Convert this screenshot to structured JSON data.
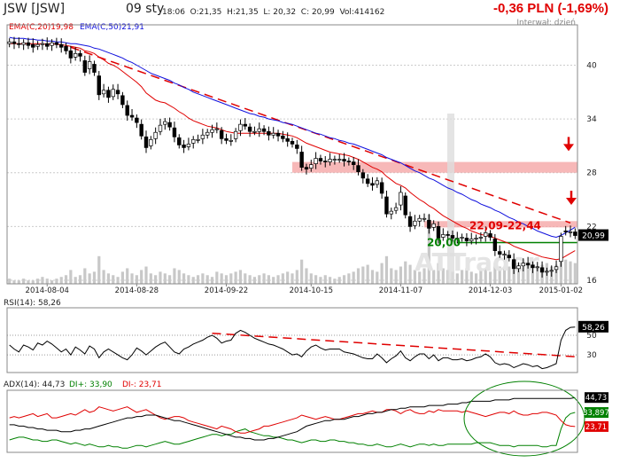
{
  "header": {
    "ticker": "JSW [JSW]",
    "date": "09 sty",
    "ohlc": "18:06  O:21,35  H:21,35  L: 20,32  C: 20,99  Vol:414162",
    "change": "-0,36 PLN (-1,69%)",
    "interval": "Interwał: dzień"
  },
  "colors": {
    "up": "#ffffff",
    "down": "#000000",
    "ema20": "#e00000",
    "ema50": "#1010dd",
    "trend": "#e00000",
    "zone": "#f4a0a0",
    "support": "#008000",
    "volume": "#c8c8c8",
    "grid": "#cccccc",
    "adx": "#000000",
    "di_plus": "#008000",
    "di_minus": "#e00000"
  },
  "chart_data": [
    {
      "type": "candlestick",
      "name": "price",
      "legend": [
        "EMA(C,20)19,98",
        "EMA(C,50)21,91"
      ],
      "y_ticks": [
        16,
        22,
        28,
        34,
        40
      ],
      "ylim": [
        15.6,
        44.5
      ],
      "x_tick_labels": [
        "2014-08-04",
        "2014-08-28",
        "2014-09-22",
        "2014-10-15",
        "2014-11-07",
        "2014-12-03",
        "2015-01-02"
      ],
      "last_label": "20,99",
      "annotations": {
        "zone_label": "22,09-22,44",
        "support_label": "20,00",
        "watermark": "ATTrader"
      },
      "close": [
        42.6,
        42.4,
        42.3,
        42.5,
        42.2,
        42.0,
        42.3,
        42.4,
        42.1,
        42.5,
        42.3,
        42.0,
        41.6,
        40.8,
        41.3,
        41.0,
        39.2,
        40.4,
        39.2,
        36.7,
        37.2,
        36.4,
        37.3,
        36.8,
        35.6,
        34.4,
        34.2,
        33.6,
        32.1,
        30.8,
        31.7,
        32.5,
        33.3,
        33.7,
        33.1,
        32.0,
        31.1,
        30.8,
        31.2,
        31.7,
        31.7,
        32.2,
        32.5,
        32.8,
        32.9,
        31.8,
        31.6,
        31.6,
        32.6,
        33.4,
        33.2,
        32.6,
        32.6,
        32.9,
        32.6,
        32.2,
        32.4,
        32.1,
        31.8,
        31.5,
        31.2,
        30.7,
        28.6,
        28.4,
        28.9,
        29.6,
        29.3,
        29.2,
        29.5,
        29.5,
        29.5,
        29.3,
        29.2,
        28.9,
        28.1,
        27.4,
        26.8,
        26.6,
        27.1,
        25.7,
        23.4,
        23.7,
        24.1,
        25.8,
        23.3,
        22.0,
        22.6,
        22.9,
        22.9,
        21.8,
        22.3,
        20.7,
        21.1,
        21.0,
        20.7,
        20.7,
        20.8,
        20.4,
        20.6,
        20.7,
        20.8,
        21.3,
        20.8,
        19.3,
        18.9,
        18.9,
        18.5,
        17.3,
        17.6,
        17.9,
        17.7,
        17.4,
        17.5,
        16.9,
        17.0,
        17.1,
        17.5,
        20.9,
        21.4,
        21.4,
        20.99
      ],
      "open_delta": [
        -0.2,
        0.2,
        0.1,
        -0.2,
        0.3,
        0.3,
        -0.2,
        -0.1,
        0.3,
        -0.3,
        0.2,
        0.3,
        0.5,
        0.8,
        -0.4,
        0.3,
        1.3,
        -0.8,
        0.9,
        2.1,
        -0.4,
        0.8,
        -0.8,
        0.4,
        1.0,
        1.1,
        0.2,
        0.5,
        1.3,
        1.2,
        -0.7,
        -0.7,
        -0.7,
        -0.3,
        0.5,
        1.0,
        0.8,
        0.3,
        -0.3,
        -0.4,
        0.0,
        -0.4,
        -0.3,
        -0.3,
        -0.1,
        0.9,
        0.2,
        0.0,
        -0.8,
        -0.7,
        0.2,
        0.5,
        0.0,
        -0.3,
        0.3,
        0.4,
        -0.2,
        0.3,
        0.3,
        0.3,
        0.3,
        0.4,
        1.7,
        0.2,
        -0.4,
        -0.6,
        0.3,
        0.1,
        -0.3,
        0.0,
        0.0,
        0.2,
        0.1,
        0.3,
        0.7,
        0.6,
        0.5,
        0.2,
        -0.4,
        1.2,
        1.9,
        -0.3,
        -0.3,
        -1.4,
        2.1,
        1.1,
        -0.5,
        -0.3,
        0.0,
        0.9,
        -0.4,
        1.3,
        -0.3,
        0.1,
        0.3,
        0.0,
        -0.1,
        0.3,
        -0.2,
        -0.1,
        -0.1,
        -0.4,
        0.4,
        1.3,
        0.3,
        0.0,
        0.3,
        1.0,
        -0.3,
        -0.3,
        0.2,
        0.3,
        -0.1,
        0.5,
        -0.1,
        -0.1,
        -0.3,
        -2.8,
        0.1,
        0.0,
        0.4
      ],
      "volume": [
        3,
        2,
        2,
        3,
        2,
        2,
        3,
        4,
        3,
        2,
        3,
        4,
        5,
        8,
        4,
        5,
        9,
        6,
        7,
        16,
        8,
        6,
        5,
        4,
        7,
        9,
        6,
        5,
        8,
        10,
        6,
        5,
        7,
        6,
        5,
        9,
        8,
        6,
        5,
        4,
        5,
        6,
        5,
        4,
        7,
        6,
        5,
        6,
        7,
        8,
        6,
        5,
        4,
        5,
        6,
        5,
        4,
        5,
        6,
        7,
        6,
        8,
        14,
        9,
        6,
        5,
        4,
        5,
        4,
        3,
        4,
        5,
        6,
        7,
        9,
        10,
        11,
        8,
        7,
        12,
        16,
        9,
        8,
        10,
        13,
        11,
        8,
        7,
        9,
        40,
        8,
        12,
        9,
        8,
        7,
        6,
        8,
        9,
        7,
        6,
        8,
        9,
        7,
        12,
        10,
        9,
        10,
        14,
        11,
        9,
        12,
        13,
        10,
        11,
        12,
        10,
        11,
        25,
        14,
        13,
        12
      ],
      "ema20": [
        42.4,
        42.4,
        42.4,
        42.4,
        42.4,
        42.4,
        42.4,
        42.4,
        42.3,
        42.4,
        42.3,
        42.3,
        42.2,
        42.1,
        42.0,
        41.9,
        41.6,
        41.5,
        41.3,
        40.9,
        40.6,
        40.2,
        40.0,
        39.7,
        39.3,
        38.9,
        38.5,
        38.1,
        37.6,
        36.9,
        36.5,
        36.1,
        35.9,
        35.8,
        35.5,
        35.2,
        34.8,
        34.5,
        34.1,
        33.8,
        33.6,
        33.4,
        33.2,
        33.1,
        33.0,
        32.8,
        32.6,
        32.5,
        32.4,
        32.4,
        32.4,
        32.4,
        32.4,
        32.4,
        32.4,
        32.4,
        32.4,
        32.4,
        32.3,
        32.2,
        32.1,
        31.9,
        31.6,
        31.3,
        31.1,
        30.9,
        30.7,
        30.5,
        30.3,
        30.2,
        30.1,
        30.0,
        29.9,
        29.7,
        29.5,
        29.2,
        28.9,
        28.6,
        28.4,
        28.1,
        27.6,
        27.2,
        26.8,
        26.6,
        26.3,
        25.8,
        25.4,
        25.0,
        24.7,
        24.3,
        24.0,
        23.6,
        23.2,
        22.9,
        22.6,
        22.3,
        22.0,
        21.8,
        21.5,
        21.3,
        21.1,
        21.0,
        20.9,
        20.7,
        20.5,
        20.3,
        20.1,
        19.8,
        19.6,
        19.4,
        19.2,
        19.0,
        18.8,
        18.6,
        18.5,
        18.4,
        18.3,
        18.4,
        18.7,
        19.0,
        19.3
      ],
      "ema50": [
        43.1,
        43.0,
        43.0,
        43.0,
        42.9,
        42.9,
        42.8,
        42.8,
        42.7,
        42.7,
        42.6,
        42.6,
        42.5,
        42.4,
        42.4,
        42.3,
        42.2,
        42.1,
        41.9,
        41.8,
        41.6,
        41.4,
        41.2,
        41.0,
        40.8,
        40.5,
        40.3,
        40.0,
        39.7,
        39.4,
        39.1,
        38.9,
        38.7,
        38.5,
        38.3,
        38.0,
        37.8,
        37.5,
        37.3,
        37.0,
        36.8,
        36.6,
        36.4,
        36.2,
        36.0,
        35.8,
        35.6,
        35.4,
        35.2,
        35.0,
        34.8,
        34.6,
        34.5,
        34.3,
        34.2,
        34.0,
        33.9,
        33.8,
        33.6,
        33.5,
        33.4,
        33.2,
        33.0,
        32.8,
        32.6,
        32.4,
        32.3,
        32.1,
        31.9,
        31.8,
        31.6,
        31.5,
        31.3,
        31.2,
        31.0,
        30.8,
        30.6,
        30.4,
        30.2,
        30.0,
        29.7,
        29.5,
        29.3,
        29.1,
        28.8,
        28.5,
        28.2,
        28.0,
        27.7,
        27.4,
        27.2,
        26.9,
        26.6,
        26.3,
        26.1,
        25.8,
        25.6,
        25.3,
        25.0,
        24.8,
        24.5,
        24.3,
        24.1,
        23.8,
        23.6,
        23.3,
        23.0,
        22.8,
        22.5,
        22.3,
        22.0,
        21.8,
        21.5,
        21.3,
        21.1,
        20.9,
        20.8,
        21.0,
        21.3,
        21.6,
        21.91
      ]
    },
    {
      "type": "line",
      "name": "rsi",
      "label": "RSI(14): 58,26",
      "y_ticks": [
        30,
        50
      ],
      "ylim": [
        12,
        78
      ],
      "last_label": "58,26",
      "values": [
        40,
        36,
        33,
        40,
        38,
        35,
        42,
        40,
        44,
        41,
        37,
        33,
        36,
        30,
        38,
        35,
        31,
        39,
        36,
        27,
        33,
        36,
        33,
        30,
        27,
        25,
        30,
        37,
        34,
        30,
        34,
        38,
        41,
        43,
        38,
        33,
        31,
        36,
        38,
        41,
        43,
        45,
        48,
        50,
        47,
        42,
        44,
        45,
        52,
        55,
        53,
        50,
        47,
        45,
        43,
        41,
        40,
        38,
        36,
        33,
        30,
        31,
        28,
        34,
        38,
        40,
        37,
        35,
        36,
        36,
        36,
        33,
        32,
        31,
        29,
        27,
        26,
        26,
        31,
        27,
        22,
        26,
        29,
        34,
        27,
        24,
        28,
        31,
        31,
        26,
        30,
        24,
        27,
        27,
        25,
        25,
        26,
        24,
        25,
        27,
        28,
        31,
        28,
        22,
        20,
        21,
        20,
        17,
        19,
        21,
        20,
        18,
        19,
        16,
        17,
        19,
        21,
        45,
        55,
        58,
        58.26
      ]
    },
    {
      "type": "line",
      "name": "adx",
      "label": "ADX(14): 44,73",
      "legend": [
        "DI+: 33,90",
        "DI-: 23,71"
      ],
      "ylim": [
        5,
        50
      ],
      "last_labels": [
        "44,73",
        "33,897",
        "23,71"
      ],
      "adx": [
        25,
        25,
        24,
        24,
        23,
        23,
        22,
        22,
        21,
        21,
        21,
        20,
        20,
        20,
        21,
        21,
        22,
        22,
        23,
        24,
        25,
        26,
        27,
        28,
        29,
        30,
        30,
        31,
        31,
        32,
        32,
        32,
        31,
        30,
        29,
        28,
        28,
        27,
        26,
        25,
        24,
        23,
        22,
        21,
        20,
        19,
        18,
        17,
        16,
        16,
        15,
        15,
        14,
        14,
        14,
        15,
        15,
        16,
        17,
        18,
        19,
        20,
        22,
        24,
        25,
        26,
        27,
        28,
        28,
        29,
        29,
        29,
        30,
        31,
        31,
        32,
        33,
        33,
        34,
        34,
        35,
        36,
        36,
        37,
        37,
        38,
        38,
        38,
        38,
        39,
        39,
        39,
        39,
        40,
        40,
        40,
        41,
        41,
        42,
        42,
        42,
        42,
        42,
        43,
        43,
        43,
        43,
        44,
        44,
        44,
        44,
        44,
        44,
        44,
        44,
        44,
        44,
        44,
        44,
        44,
        44.73
      ],
      "di_plus": [
        14,
        15,
        16,
        16,
        15,
        14,
        14,
        13,
        13,
        14,
        14,
        13,
        12,
        11,
        12,
        11,
        10,
        11,
        10,
        9,
        9,
        10,
        9,
        9,
        8,
        8,
        9,
        10,
        10,
        9,
        10,
        11,
        12,
        13,
        12,
        11,
        11,
        12,
        13,
        14,
        15,
        16,
        17,
        18,
        18,
        17,
        18,
        18,
        20,
        21,
        22,
        20,
        19,
        18,
        17,
        17,
        16,
        16,
        15,
        14,
        14,
        13,
        12,
        13,
        14,
        14,
        13,
        13,
        14,
        14,
        13,
        13,
        12,
        12,
        11,
        11,
        10,
        10,
        11,
        10,
        9,
        9,
        10,
        11,
        10,
        9,
        10,
        11,
        11,
        10,
        11,
        10,
        10,
        11,
        11,
        11,
        11,
        11,
        11,
        12,
        12,
        12,
        12,
        11,
        10,
        10,
        10,
        9,
        10,
        10,
        10,
        10,
        10,
        9,
        9,
        10,
        10,
        22,
        30,
        33,
        33.9
      ],
      "di_minus": [
        30,
        31,
        30,
        31,
        32,
        33,
        31,
        32,
        33,
        30,
        30,
        31,
        32,
        33,
        32,
        34,
        36,
        34,
        35,
        38,
        37,
        36,
        35,
        36,
        37,
        38,
        36,
        34,
        35,
        36,
        34,
        32,
        30,
        29,
        30,
        31,
        31,
        30,
        28,
        27,
        26,
        25,
        24,
        23,
        22,
        24,
        23,
        22,
        20,
        19,
        19,
        20,
        21,
        22,
        24,
        24,
        25,
        26,
        27,
        28,
        29,
        30,
        32,
        31,
        30,
        29,
        30,
        31,
        30,
        29,
        29,
        30,
        31,
        32,
        33,
        33,
        34,
        35,
        34,
        34,
        36,
        36,
        35,
        33,
        35,
        36,
        34,
        33,
        33,
        35,
        34,
        36,
        35,
        35,
        35,
        35,
        34,
        35,
        34,
        33,
        32,
        31,
        32,
        33,
        34,
        34,
        33,
        35,
        33,
        32,
        32,
        33,
        33,
        34,
        34,
        33,
        32,
        28,
        25,
        24,
        23.71
      ]
    }
  ]
}
